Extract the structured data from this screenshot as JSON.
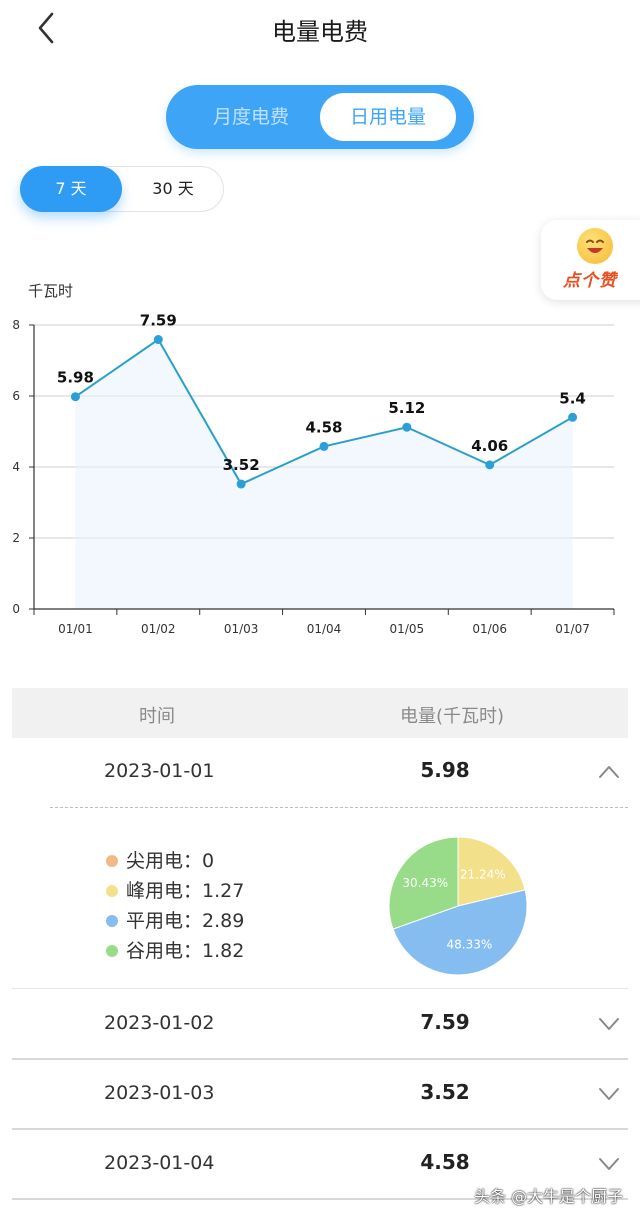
{
  "header": {
    "title": "电量电费",
    "back_icon": "chevron-left-icon"
  },
  "segment": {
    "month_label": "月度电费",
    "day_label": "日用电量",
    "active": "day"
  },
  "range": {
    "seven_label": "7 天",
    "thirty_label": "30 天",
    "active": "7"
  },
  "like_widget": {
    "label": "点个赞",
    "icon": "smiley-face-icon"
  },
  "chart_data": {
    "type": "line",
    "ylabel": "千瓦时",
    "categories": [
      "01/01",
      "01/02",
      "01/03",
      "01/04",
      "01/05",
      "01/06",
      "01/07"
    ],
    "values": [
      5.98,
      7.59,
      3.52,
      4.58,
      5.12,
      4.06,
      5.4
    ],
    "data_labels": [
      "5.98",
      "7.59",
      "3.52",
      "4.58",
      "5.12",
      "4.06",
      "5.4"
    ],
    "ylim": [
      0,
      8
    ],
    "yticks": [
      0,
      2,
      4,
      6,
      8
    ],
    "grid": true,
    "area_fill": true,
    "line_color": "#2aa0c8"
  },
  "table": {
    "col_time": "时间",
    "col_power": "电量(千瓦时)",
    "rows": [
      {
        "date": "2023-01-01",
        "value": "5.98",
        "expanded": true
      },
      {
        "date": "2023-01-02",
        "value": "7.59",
        "expanded": false
      },
      {
        "date": "2023-01-03",
        "value": "3.52",
        "expanded": false
      },
      {
        "date": "2023-01-04",
        "value": "4.58",
        "expanded": false
      }
    ]
  },
  "breakdown": {
    "items": [
      {
        "label": "尖用电：",
        "value": "0",
        "color": "#f0b98a"
      },
      {
        "label": "峰用电：",
        "value": "1.27",
        "color": "#f3e08a"
      },
      {
        "label": "平用电：",
        "value": "2.89",
        "color": "#86bdf0"
      },
      {
        "label": "谷用电：",
        "value": "1.82",
        "color": "#98db88"
      }
    ],
    "pie": [
      {
        "name": "峰用电",
        "percent": 21.24,
        "label": "21.24%",
        "color": "#f3e08a"
      },
      {
        "name": "平用电",
        "percent": 48.33,
        "label": "48.33%",
        "color": "#86bdf0"
      },
      {
        "name": "谷用电",
        "percent": 30.43,
        "label": "30.43%",
        "color": "#98db88"
      }
    ]
  },
  "watermark": "头条 @大牛是个厨子"
}
